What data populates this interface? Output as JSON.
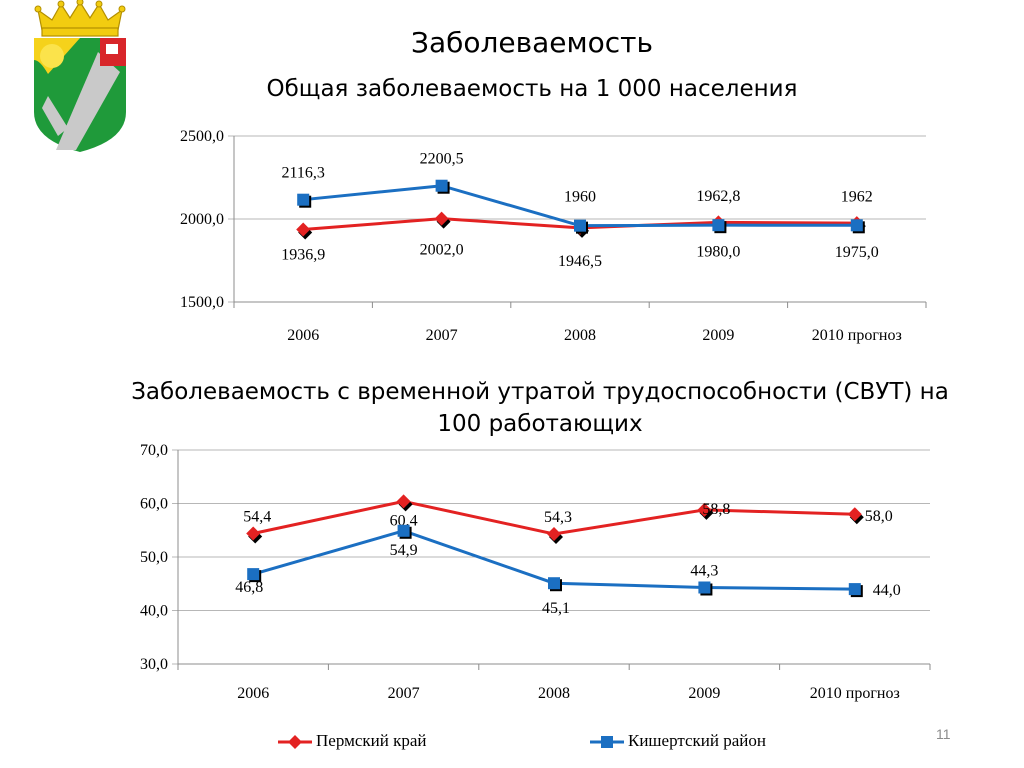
{
  "slide": {
    "title": "Заболеваемость",
    "number": "11"
  },
  "colors": {
    "perm": "#e32222",
    "kishert": "#1b6fc2",
    "markers_shadow": "#000000",
    "axis": "#8c8c8c",
    "grid": "#b7b7b7"
  },
  "legend": {
    "perm": "Пермский край",
    "kishert": "Кишертский район"
  },
  "chart_data": [
    {
      "type": "line",
      "title": "Общая заболеваемость на 1 000 населения",
      "categories": [
        "2006",
        "2007",
        "2008",
        "2009",
        "2010 прогноз"
      ],
      "ylim": [
        1500,
        2500
      ],
      "yticks": [
        "1500,0",
        "2000,0",
        "2500,0"
      ],
      "grid": true,
      "series": [
        {
          "key": "perm",
          "name": "Пермский край",
          "marker": "diamond",
          "values": [
            1936.9,
            2002.0,
            1946.5,
            1980.0,
            1975.0
          ],
          "labels": [
            "1936,9",
            "2002,0",
            "1946,5",
            "1980,0",
            "1975,0"
          ]
        },
        {
          "key": "kishert",
          "name": "Кишертский район",
          "marker": "square",
          "values": [
            2116.3,
            2200.5,
            1960,
            1962.8,
            1962
          ],
          "labels": [
            "2116,3",
            "2200,5",
            "1960",
            "1962,8",
            "1962"
          ]
        }
      ]
    },
    {
      "type": "line",
      "title": "Заболеваемость с временной утратой трудоспособности (СВУТ) на 100 работающих",
      "categories": [
        "2006",
        "2007",
        "2008",
        "2009",
        "2010 прогноз"
      ],
      "ylim": [
        30,
        70
      ],
      "yticks": [
        "30,0",
        "40,0",
        "50,0",
        "60,0",
        "70,0"
      ],
      "grid": true,
      "legend_position": "bottom",
      "series": [
        {
          "key": "perm",
          "name": "Пермский край",
          "marker": "diamond",
          "values": [
            54.4,
            60.4,
            54.3,
            58.8,
            58.0
          ],
          "labels": [
            "54,4",
            "60,4",
            "54,3",
            "58,8",
            "58,0"
          ]
        },
        {
          "key": "kishert",
          "name": "Кишертский район",
          "marker": "square",
          "values": [
            46.8,
            54.9,
            45.1,
            44.3,
            44.0
          ],
          "labels": [
            "46,8",
            "54,9",
            "45,1",
            "44,3",
            "44,0"
          ]
        }
      ]
    }
  ]
}
